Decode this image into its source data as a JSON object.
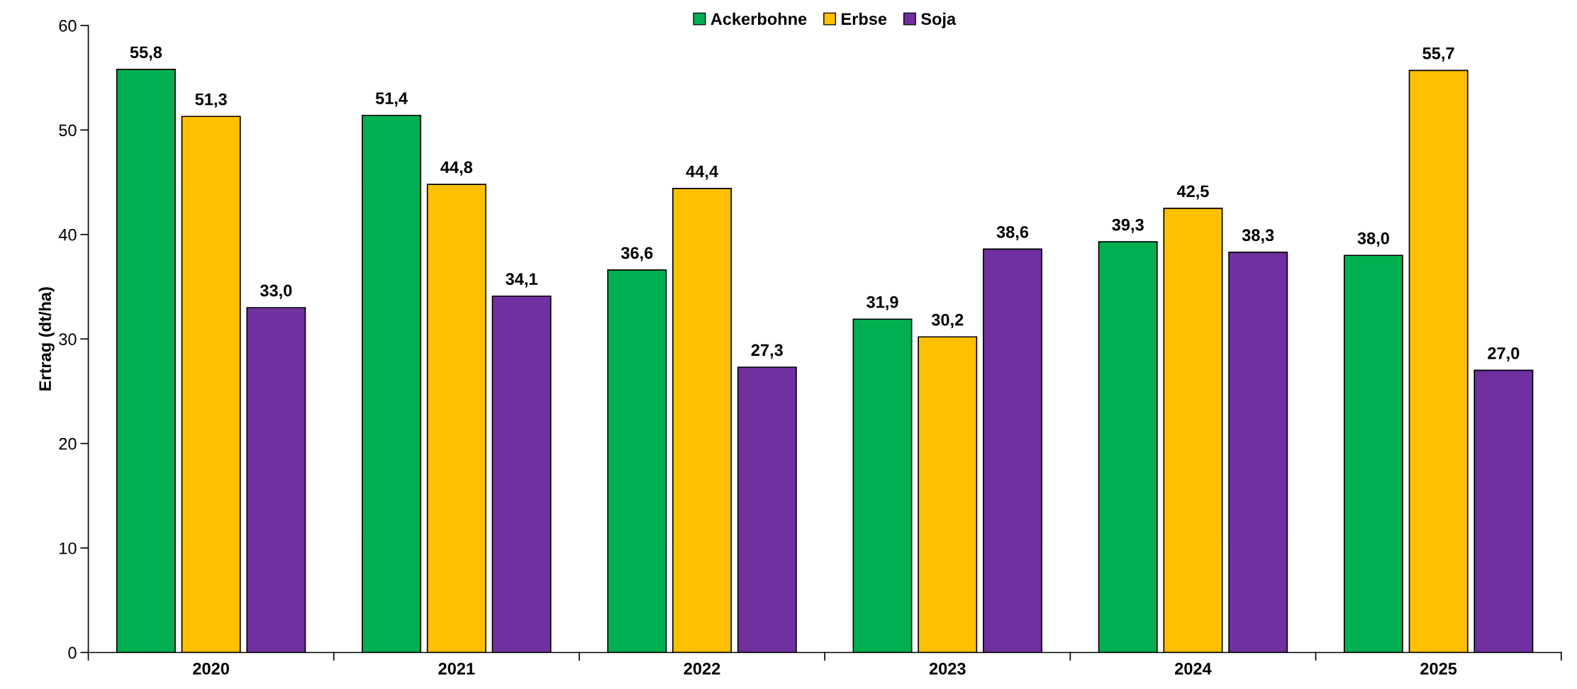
{
  "chart_data": {
    "type": "bar",
    "ylabel": "Ertrag (dt/ha)",
    "categories": [
      "2020",
      "2021",
      "2022",
      "2023",
      "2024",
      "2025"
    ],
    "series": [
      {
        "name": "Ackerbohne",
        "color": "#00b050",
        "values": [
          55.8,
          51.4,
          36.6,
          31.9,
          39.3,
          38.0
        ],
        "value_labels": [
          "55,8",
          "51,4",
          "36,6",
          "31,9",
          "39,3",
          "38,0"
        ]
      },
      {
        "name": "Erbse",
        "color": "#ffc000",
        "values": [
          51.3,
          44.8,
          44.4,
          30.2,
          42.5,
          55.7
        ],
        "value_labels": [
          "51,3",
          "44,8",
          "44,4",
          "30,2",
          "42,5",
          "55,7"
        ]
      },
      {
        "name": "Soja",
        "color": "#7030a0",
        "values": [
          33.0,
          34.1,
          27.3,
          38.6,
          38.3,
          27.0
        ],
        "value_labels": [
          "33,0",
          "34,1",
          "27,3",
          "38,6",
          "38,3",
          "27,0"
        ]
      }
    ],
    "ylim": [
      0,
      60
    ],
    "yticks": [
      0,
      10,
      20,
      30,
      40,
      50,
      60
    ],
    "grid": false,
    "legend": "top"
  }
}
